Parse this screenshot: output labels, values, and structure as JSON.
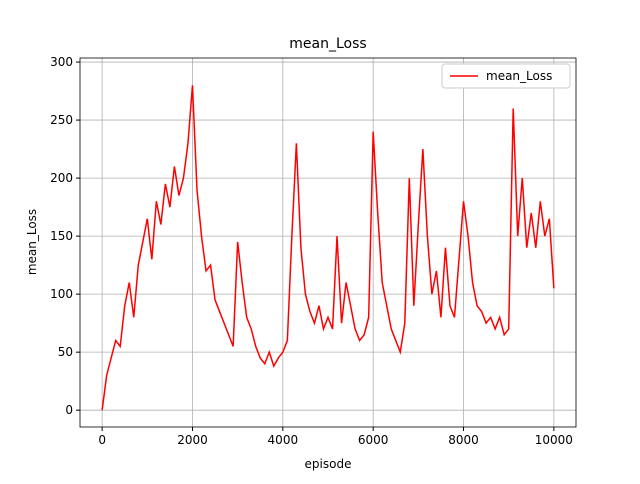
{
  "chart_data": {
    "type": "line",
    "title": "mean_Loss",
    "x_label": "episode",
    "y_label": "mean_Loss",
    "x": [
      0,
      100,
      200,
      300,
      400,
      500,
      600,
      700,
      800,
      900,
      1000,
      1100,
      1200,
      1300,
      1400,
      1500,
      1600,
      1700,
      1800,
      1900,
      2000,
      2100,
      2200,
      2300,
      2400,
      2500,
      2600,
      2700,
      2800,
      2900,
      3000,
      3100,
      3200,
      3300,
      3400,
      3500,
      3600,
      3700,
      3800,
      3900,
      4000,
      4100,
      4200,
      4300,
      4400,
      4500,
      4600,
      4700,
      4800,
      4900,
      5000,
      5100,
      5200,
      5300,
      5400,
      5500,
      5600,
      5700,
      5800,
      5900,
      6000,
      6100,
      6200,
      6300,
      6400,
      6500,
      6600,
      6700,
      6800,
      6900,
      7000,
      7100,
      7200,
      7300,
      7400,
      7500,
      7600,
      7700,
      7800,
      7900,
      8000,
      8100,
      8200,
      8300,
      8400,
      8500,
      8600,
      8700,
      8800,
      8900,
      9000,
      9100,
      9200,
      9300,
      9400,
      9500,
      9600,
      9700,
      9800,
      9900,
      10000
    ],
    "series": [
      {
        "name": "mean_Loss",
        "color": "#ff0000",
        "values": [
          0,
          30,
          45,
          60,
          55,
          90,
          110,
          80,
          125,
          145,
          165,
          130,
          180,
          160,
          195,
          175,
          210,
          185,
          200,
          230,
          280,
          190,
          150,
          120,
          125,
          95,
          85,
          75,
          65,
          55,
          145,
          110,
          80,
          70,
          55,
          45,
          40,
          50,
          38,
          45,
          50,
          60,
          150,
          230,
          140,
          100,
          85,
          75,
          90,
          70,
          80,
          70,
          150,
          75,
          110,
          90,
          70,
          60,
          65,
          80,
          240,
          170,
          110,
          90,
          70,
          60,
          50,
          75,
          200,
          90,
          160,
          225,
          150,
          100,
          120,
          80,
          140,
          90,
          80,
          130,
          180,
          150,
          110,
          90,
          85,
          75,
          80,
          70,
          80,
          65,
          70,
          260,
          150,
          200,
          140,
          170,
          140,
          180,
          150,
          165,
          105
        ]
      }
    ],
    "xlim": [
      -490,
      10490
    ],
    "ylim": [
      -14.5,
      303.5
    ],
    "xticks": [
      0,
      2000,
      4000,
      6000,
      8000,
      10000
    ],
    "yticks": [
      0,
      50,
      100,
      150,
      200,
      250,
      300
    ],
    "grid": true,
    "legend": "upper-right"
  }
}
